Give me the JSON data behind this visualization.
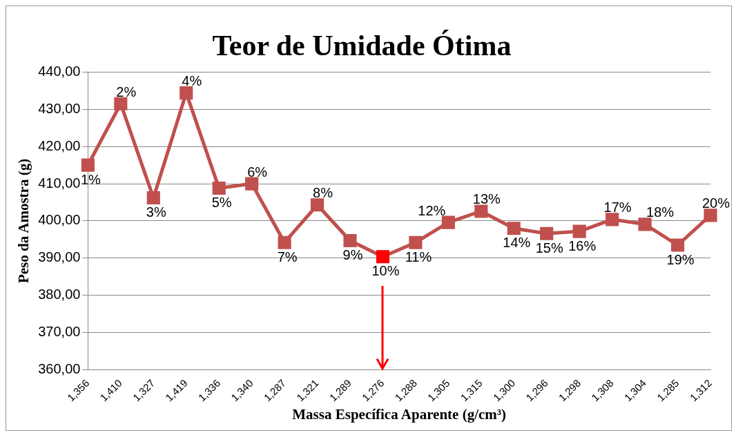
{
  "chart_data": {
    "type": "line",
    "title": "Teor de Umidade Ótima",
    "xlabel": "Massa Específica Aparente (g/cm³)",
    "ylabel": "Peso da Amostra (g)",
    "categories": [
      "1,356",
      "1,410",
      "1,327",
      "1,419",
      "1,336",
      "1,340",
      "1,287",
      "1,321",
      "1,289",
      "1,276",
      "1,288",
      "1,305",
      "1,315",
      "1,300",
      "1,296",
      "1,298",
      "1,308",
      "1,304",
      "1,285",
      "1,312"
    ],
    "series": [
      {
        "color": "#c0504d",
        "colors": [
          "#c0504d",
          "#c0504d",
          "#c0504d",
          "#c0504d",
          "#c0504d",
          "#c0504d",
          "#c0504d",
          "#c0504d",
          "#c0504d",
          "#ff0000",
          "#c0504d",
          "#c0504d",
          "#c0504d",
          "#c0504d",
          "#c0504d",
          "#c0504d",
          "#c0504d",
          "#c0504d",
          "#c0504d",
          "#c0504d"
        ],
        "values": [
          415.0,
          431.5,
          406.2,
          434.4,
          408.8,
          410.0,
          394.2,
          404.3,
          394.7,
          390.4,
          394.2,
          399.6,
          402.6,
          398.0,
          396.6,
          397.2,
          400.4,
          399.1,
          393.5,
          401.5
        ]
      }
    ],
    "annotations": [
      {
        "text": "1%",
        "x": "1,356",
        "y": 415.0
      },
      {
        "text": "2%",
        "x": "1,410",
        "y": 431.5
      },
      {
        "text": "3%",
        "x": "1,327",
        "y": 406.2
      },
      {
        "text": "4%",
        "x": "1,419",
        "y": 434.4
      },
      {
        "text": "5%",
        "x": "1,336",
        "y": 408.8
      },
      {
        "text": "6%",
        "x": "1,340",
        "y": 410.0
      },
      {
        "text": "7%",
        "x": "1,287",
        "y": 394.2
      },
      {
        "text": "8%",
        "x": "1,321",
        "y": 404.3
      },
      {
        "text": "9%",
        "x": "1,289",
        "y": 394.7
      },
      {
        "text": "10%",
        "x": "1,276",
        "y": 390.4
      },
      {
        "text": "11%",
        "x": "1,288",
        "y": 394.2
      },
      {
        "text": "12%",
        "x": "1,305",
        "y": 399.6
      },
      {
        "text": "13%",
        "x": "1,315",
        "y": 402.6
      },
      {
        "text": "14%",
        "x": "1,300",
        "y": 398.0
      },
      {
        "text": "15%",
        "x": "1,296",
        "y": 396.6
      },
      {
        "text": "16%",
        "x": "1,298",
        "y": 397.2
      },
      {
        "text": "17%",
        "x": "1,308",
        "y": 400.4
      },
      {
        "text": "18%",
        "x": "1,304",
        "y": 399.1
      },
      {
        "text": "19%",
        "x": "1,285",
        "y": 393.5
      },
      {
        "text": "20%",
        "x": "1,312",
        "y": 401.5
      }
    ],
    "ylim": [
      360,
      440
    ],
    "yticks": [
      {
        "value": 360,
        "label": "360,00"
      },
      {
        "value": 370,
        "label": "370,00"
      },
      {
        "value": 380,
        "label": "380,00"
      },
      {
        "value": 390,
        "label": "390,00"
      },
      {
        "value": 400,
        "label": "400,00"
      },
      {
        "value": 410,
        "label": "410,00"
      },
      {
        "value": 420,
        "label": "420,00"
      },
      {
        "value": 430,
        "label": "430,00"
      },
      {
        "value": 440,
        "label": "440,00"
      }
    ],
    "grid": "y",
    "legend": false,
    "marker": "square",
    "line_style": "solid"
  }
}
